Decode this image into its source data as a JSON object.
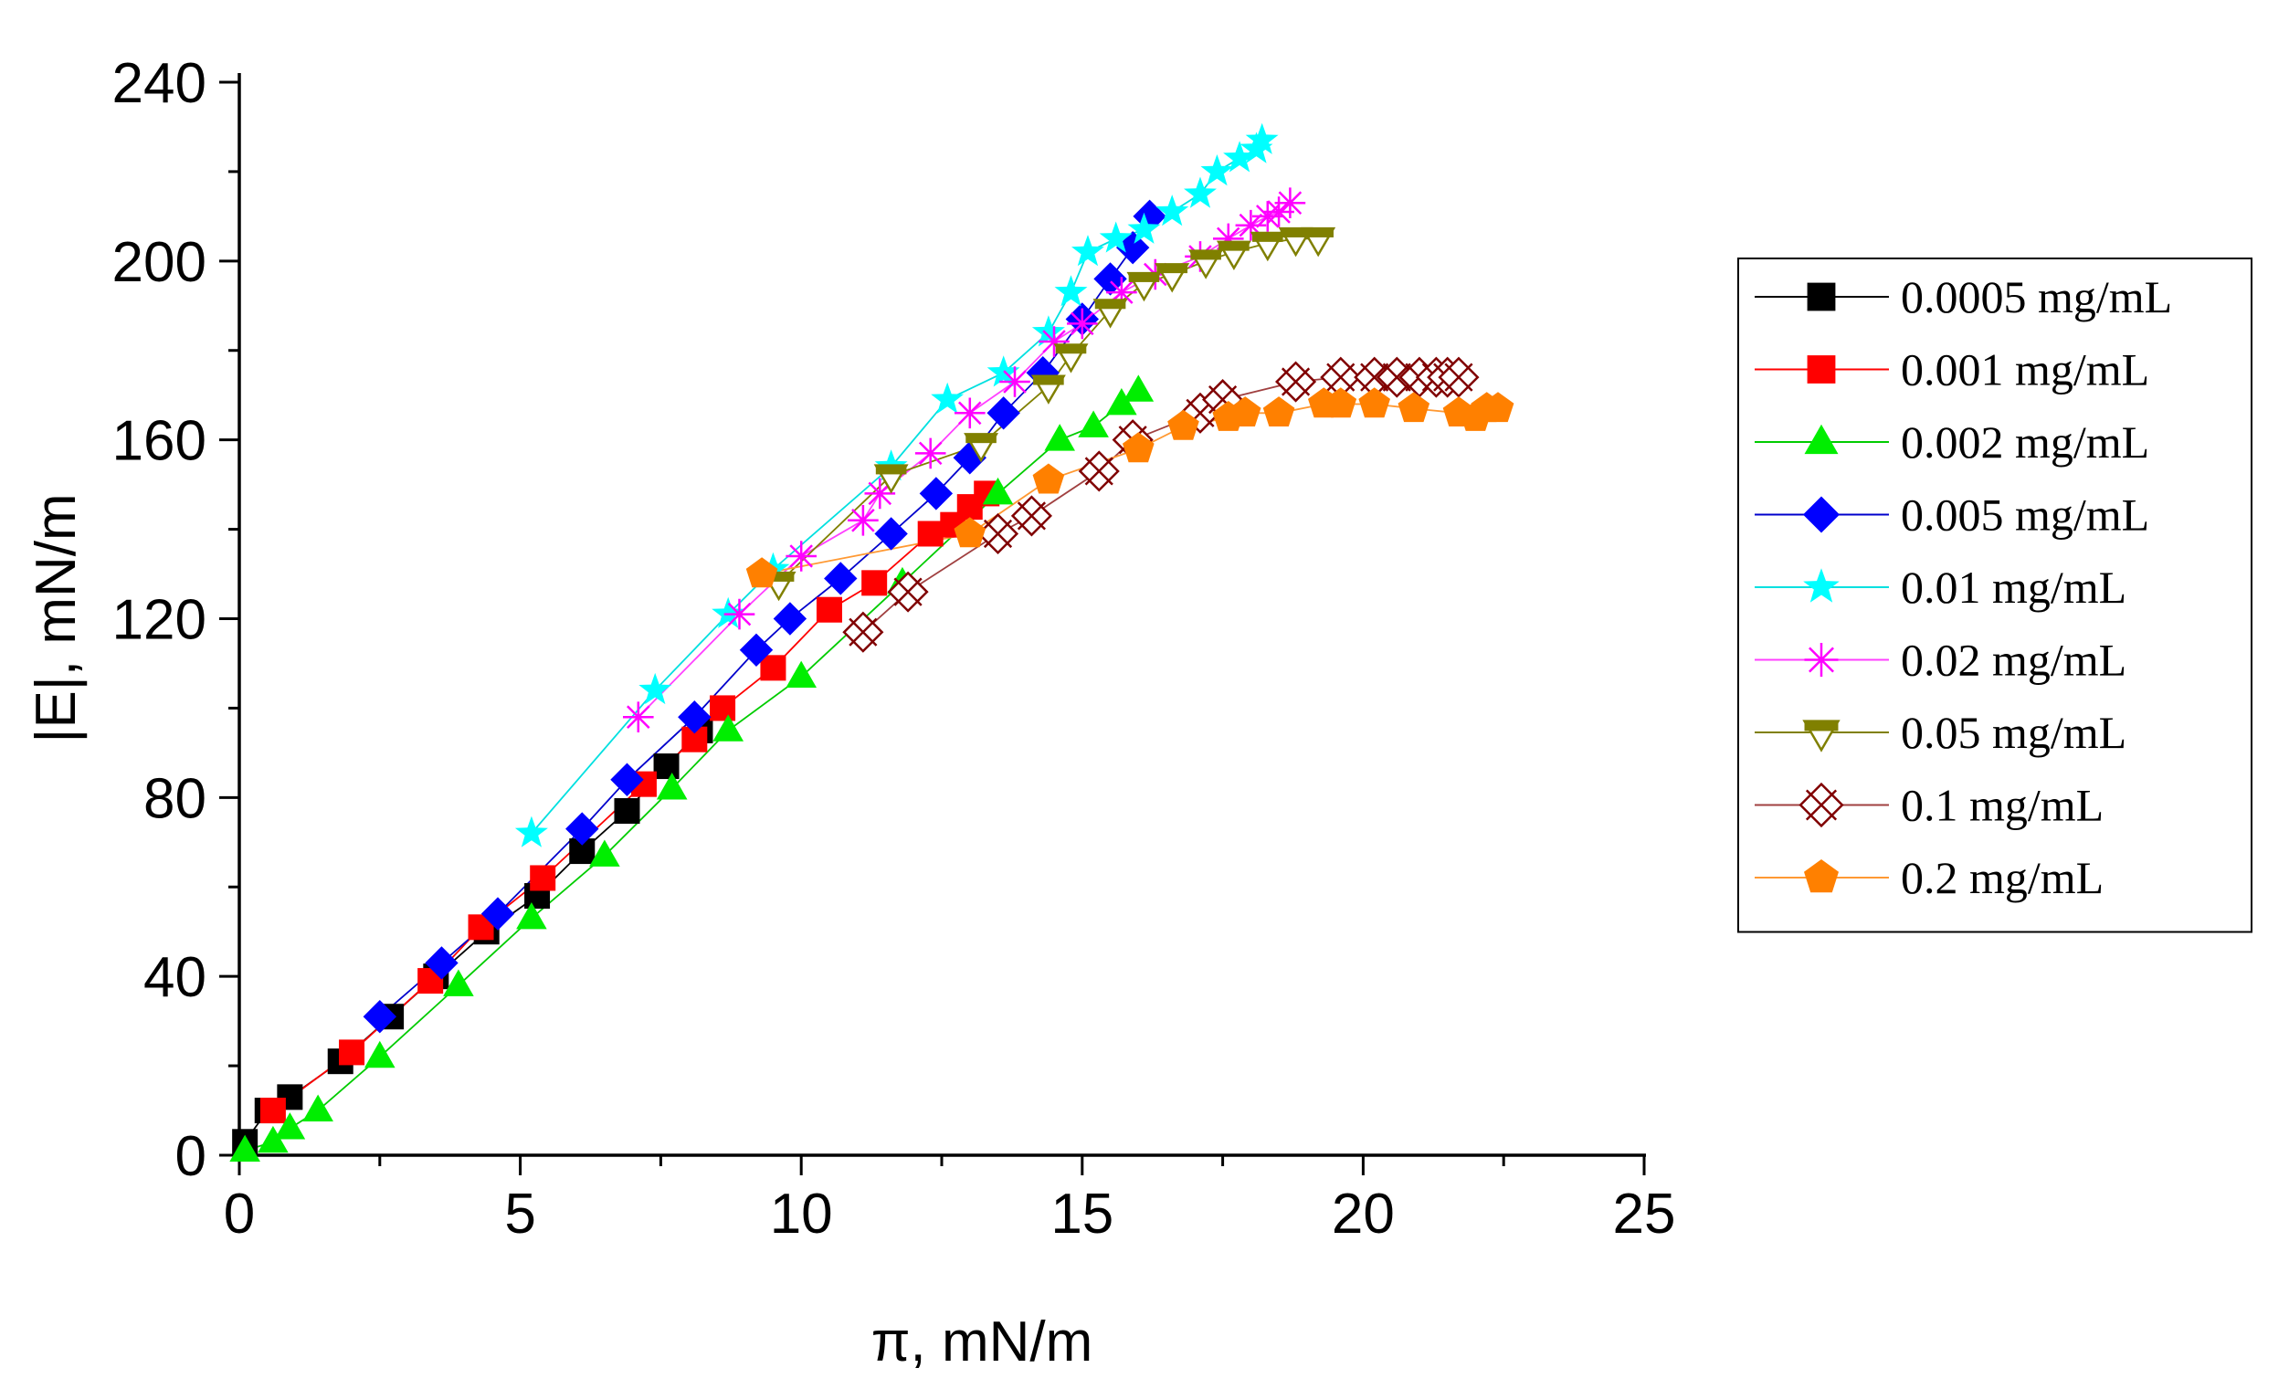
{
  "chart_data": {
    "type": "scatter",
    "title": "",
    "xlabel": "π, mN/m",
    "ylabel": "|E|, mN/m",
    "xlim": [
      0,
      25
    ],
    "ylim": [
      0,
      240
    ],
    "xticks": [
      0,
      5,
      10,
      15,
      20,
      25
    ],
    "yticks": [
      0,
      40,
      80,
      120,
      160,
      200,
      240
    ],
    "legend_position": "right",
    "series": [
      {
        "name": "0.0005 mg/mL",
        "color": "#000000",
        "line_color": "#000000",
        "marker": "square",
        "x": [
          0.1,
          0.5,
          0.9,
          1.8,
          2.7,
          3.5,
          4.4,
          5.3,
          6.1,
          6.9,
          7.6,
          8.2
        ],
        "y": [
          3,
          10,
          13,
          21,
          31,
          40,
          50,
          58,
          68,
          77,
          87,
          95
        ]
      },
      {
        "name": "0.001 mg/mL",
        "color": "#ff0000",
        "line_color": "#ff0000",
        "marker": "square",
        "x": [
          0.6,
          2.0,
          3.4,
          4.3,
          5.4,
          7.2,
          8.1,
          8.6,
          9.5,
          10.5,
          11.3,
          12.3,
          12.7,
          13.0,
          13.3
        ],
        "y": [
          10,
          23,
          39,
          51,
          62,
          83,
          93,
          100,
          109,
          122,
          128,
          139,
          141,
          145,
          148
        ]
      },
      {
        "name": "0.002 mg/mL",
        "color": "#00ee00",
        "line_color": "#00cc00",
        "marker": "triangle",
        "x": [
          0.1,
          0.6,
          0.9,
          1.4,
          2.5,
          3.9,
          5.2,
          6.5,
          7.7,
          8.7,
          10.0,
          11.8,
          13.5,
          14.6,
          15.2,
          15.7,
          16.0
        ],
        "y": [
          1,
          3,
          6,
          10,
          22,
          38,
          53,
          67,
          82,
          95,
          107,
          128,
          148,
          160,
          163,
          168,
          171
        ]
      },
      {
        "name": "0.005 mg/mL",
        "color": "#0000ff",
        "line_color": "#0000cc",
        "marker": "diamond",
        "x": [
          2.5,
          3.6,
          4.6,
          6.1,
          6.9,
          8.1,
          9.2,
          9.8,
          10.7,
          11.6,
          12.4,
          13.0,
          13.6,
          14.3,
          15.0,
          15.5,
          15.9,
          16.2
        ],
        "y": [
          31,
          43,
          54,
          73,
          84,
          98,
          113,
          120,
          129,
          139,
          148,
          156,
          166,
          175,
          187,
          196,
          203,
          210
        ]
      },
      {
        "name": "0.01 mg/mL",
        "color": "#00ffff",
        "line_color": "#00e0e0",
        "marker": "star",
        "x": [
          5.2,
          7.4,
          8.7,
          9.5,
          11.6,
          12.6,
          13.6,
          14.4,
          14.8,
          15.1,
          15.6,
          16.1,
          16.6,
          17.1,
          17.4,
          17.8,
          18.1,
          18.2
        ],
        "y": [
          72,
          104,
          121,
          131,
          154,
          169,
          175,
          184,
          193,
          202,
          205,
          207,
          211,
          215,
          220,
          223,
          225,
          227
        ]
      },
      {
        "name": "0.02 mg/mL",
        "color": "#ff00ff",
        "line_color": "#ff40ff",
        "marker": "asterisk",
        "x": [
          7.1,
          8.9,
          10.0,
          11.1,
          11.4,
          12.3,
          13.0,
          13.8,
          14.5,
          15.0,
          15.7,
          16.3,
          17.1,
          17.6,
          18.0,
          18.3,
          18.5,
          18.7
        ],
        "y": [
          98,
          121,
          134,
          142,
          148,
          157,
          166,
          173,
          182,
          186,
          193,
          197,
          201,
          205,
          208,
          210,
          211,
          213
        ]
      },
      {
        "name": "0.05 mg/mL",
        "color": "#808000",
        "line_color": "#808000",
        "marker": "tri-down",
        "x": [
          9.6,
          11.6,
          13.2,
          14.4,
          14.8,
          15.5,
          16.1,
          16.6,
          17.2,
          17.7,
          18.3,
          18.8,
          19.2
        ],
        "y": [
          128,
          152,
          159,
          172,
          179,
          189,
          195,
          197,
          200,
          202,
          204,
          205,
          205
        ]
      },
      {
        "name": "0.1 mg/mL",
        "color": "#800000",
        "line_color": "#a04040",
        "marker": "crossed",
        "x": [
          11.1,
          11.9,
          13.5,
          14.1,
          15.3,
          15.9,
          17.1,
          17.5,
          18.8,
          19.6,
          20.2,
          20.6,
          21.0,
          21.3,
          21.5,
          21.7
        ],
        "y": [
          117,
          126,
          139,
          143,
          153,
          160,
          166,
          169,
          173,
          174,
          174,
          174,
          174,
          174,
          174,
          174
        ]
      },
      {
        "name": "0.2 mg/mL",
        "color": "#ff8000",
        "line_color": "#ff9933",
        "marker": "pentagon",
        "x": [
          9.3,
          13.0,
          14.4,
          16.0,
          16.8,
          17.6,
          17.9,
          18.5,
          19.3,
          19.6,
          20.2,
          20.9,
          21.7,
          22.0,
          22.2,
          22.4
        ],
        "y": [
          130,
          139,
          151,
          158,
          163,
          165,
          166,
          166,
          168,
          168,
          168,
          167,
          166,
          165,
          167,
          167
        ]
      }
    ]
  }
}
